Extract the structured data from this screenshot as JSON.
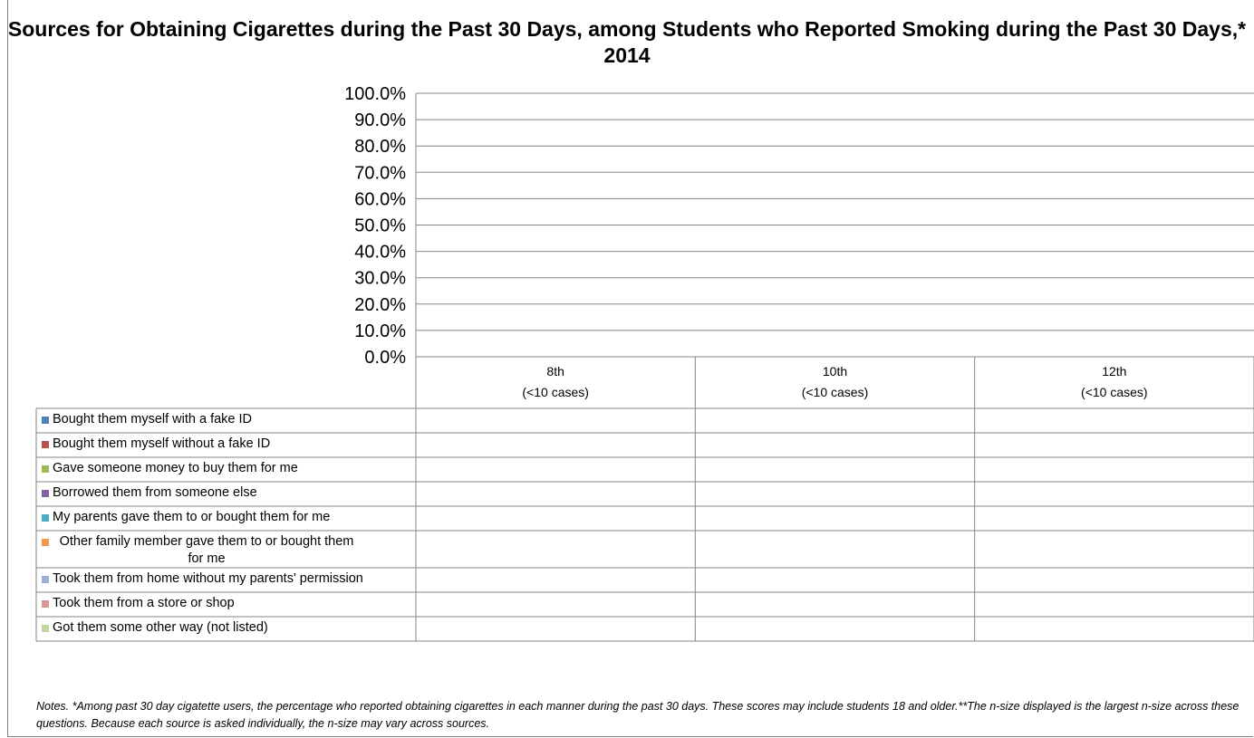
{
  "chart_data": {
    "type": "table",
    "title": "Sources for Obtaining Cigarettes during the Past 30 Days, among Students who Reported Smoking during the Past 30 Days,* 2014",
    "ylim": [
      0,
      100
    ],
    "yticks": [
      "100.0%",
      "90.0%",
      "80.0%",
      "70.0%",
      "60.0%",
      "50.0%",
      "40.0%",
      "30.0%",
      "20.0%",
      "10.0%",
      "0.0%"
    ],
    "categories": [
      {
        "name": "8th",
        "sub": "(<10 cases)"
      },
      {
        "name": "10th",
        "sub": "(<10 cases)"
      },
      {
        "name": "12th",
        "sub": "(<10 cases)"
      }
    ],
    "series": [
      {
        "name": "Bought them myself with a fake ID",
        "color": "#4f81bd",
        "values": [
          null,
          null,
          null
        ]
      },
      {
        "name": "Bought them myself without a fake ID",
        "color": "#c0504d",
        "values": [
          null,
          null,
          null
        ]
      },
      {
        "name": "Gave someone money to buy them for me",
        "color": "#9bbb59",
        "values": [
          null,
          null,
          null
        ]
      },
      {
        "name": "Borrowed them from someone else",
        "color": "#8064a2",
        "values": [
          null,
          null,
          null
        ]
      },
      {
        "name": "My parents gave them to or bought them for me",
        "color": "#4bacc6",
        "values": [
          null,
          null,
          null
        ]
      },
      {
        "name": "Other family member gave them to or bought them for me",
        "color": "#f79646",
        "values": [
          null,
          null,
          null
        ]
      },
      {
        "name": "Took them from home without my parents' permission",
        "color": "#95b3d7",
        "values": [
          null,
          null,
          null
        ]
      },
      {
        "name": "Took them from a store or shop",
        "color": "#d99694",
        "values": [
          null,
          null,
          null
        ]
      },
      {
        "name": "Got them some other way (not listed)",
        "color": "#c3d69b",
        "values": [
          null,
          null,
          null
        ]
      }
    ],
    "grid": true,
    "legend": "data-table"
  },
  "notes": "Notes.  *Among past 30 day cigatette users, the percentage who reported obtaining cigarettes in each manner during the past 30 days. These scores may include students 18 and older.**The n-size displayed is the largest n-size across these questions. Because each source is asked individually, the n-size may vary across sources."
}
